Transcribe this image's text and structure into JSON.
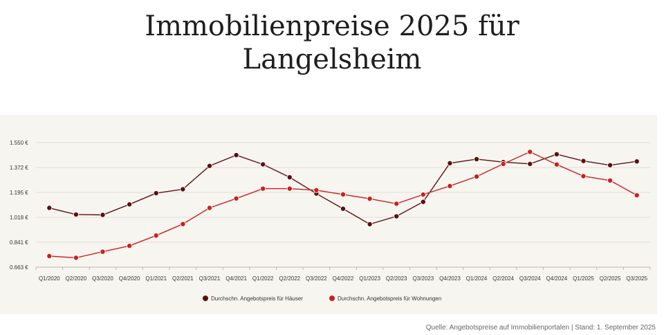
{
  "title_line1": "Immobilienpreise 2025 für",
  "title_line2": "Langelsheim",
  "source": "Quelle: Angebotspreise auf Immobilienportalen | Stand: 1. September 2025",
  "chart_data": {
    "type": "line",
    "title": "Immobilienpreise 2025 für Langelsheim",
    "categories": [
      "Q1/2020",
      "Q2/2020",
      "Q3/2020",
      "Q4/2020",
      "Q1/2021",
      "Q2/2021",
      "Q3/2021",
      "Q4/2021",
      "Q1/2022",
      "Q2/2022",
      "Q3/2022",
      "Q4/2022",
      "Q1/2023",
      "Q2/2023",
      "Q3/2023",
      "Q4/2023",
      "Q1/2024",
      "Q2/2024",
      "Q3/2024",
      "Q4/2024",
      "Q1/2025",
      "Q2/2025",
      "Q3/2025"
    ],
    "y_ticks": [
      "0.663 €",
      "0.841 €",
      "1.018 €",
      "1.195 €",
      "1.372 €",
      "1.550 €"
    ],
    "y_tick_values": [
      663,
      841,
      1018,
      1195,
      1372,
      1550
    ],
    "ylim": [
      663,
      1550
    ],
    "grid": true,
    "legend_position": "bottom",
    "series": [
      {
        "name": "Durchschn. Angebotspreis für Häuser",
        "color": "#5c0f0f",
        "values": [
          1085,
          1038,
          1035,
          1110,
          1190,
          1218,
          1384,
          1461,
          1395,
          1303,
          1187,
          1079,
          969,
          1025,
          1128,
          1403,
          1432,
          1411,
          1398,
          1467,
          1419,
          1389,
          1416
        ]
      },
      {
        "name": "Durchschn. Angebotspreis für Wohnungen",
        "color": "#cc1f1f",
        "values": [
          742,
          730,
          773,
          815,
          888,
          970,
          1085,
          1152,
          1222,
          1222,
          1211,
          1181,
          1150,
          1115,
          1180,
          1241,
          1308,
          1398,
          1484,
          1394,
          1311,
          1280,
          1175
        ]
      }
    ]
  }
}
